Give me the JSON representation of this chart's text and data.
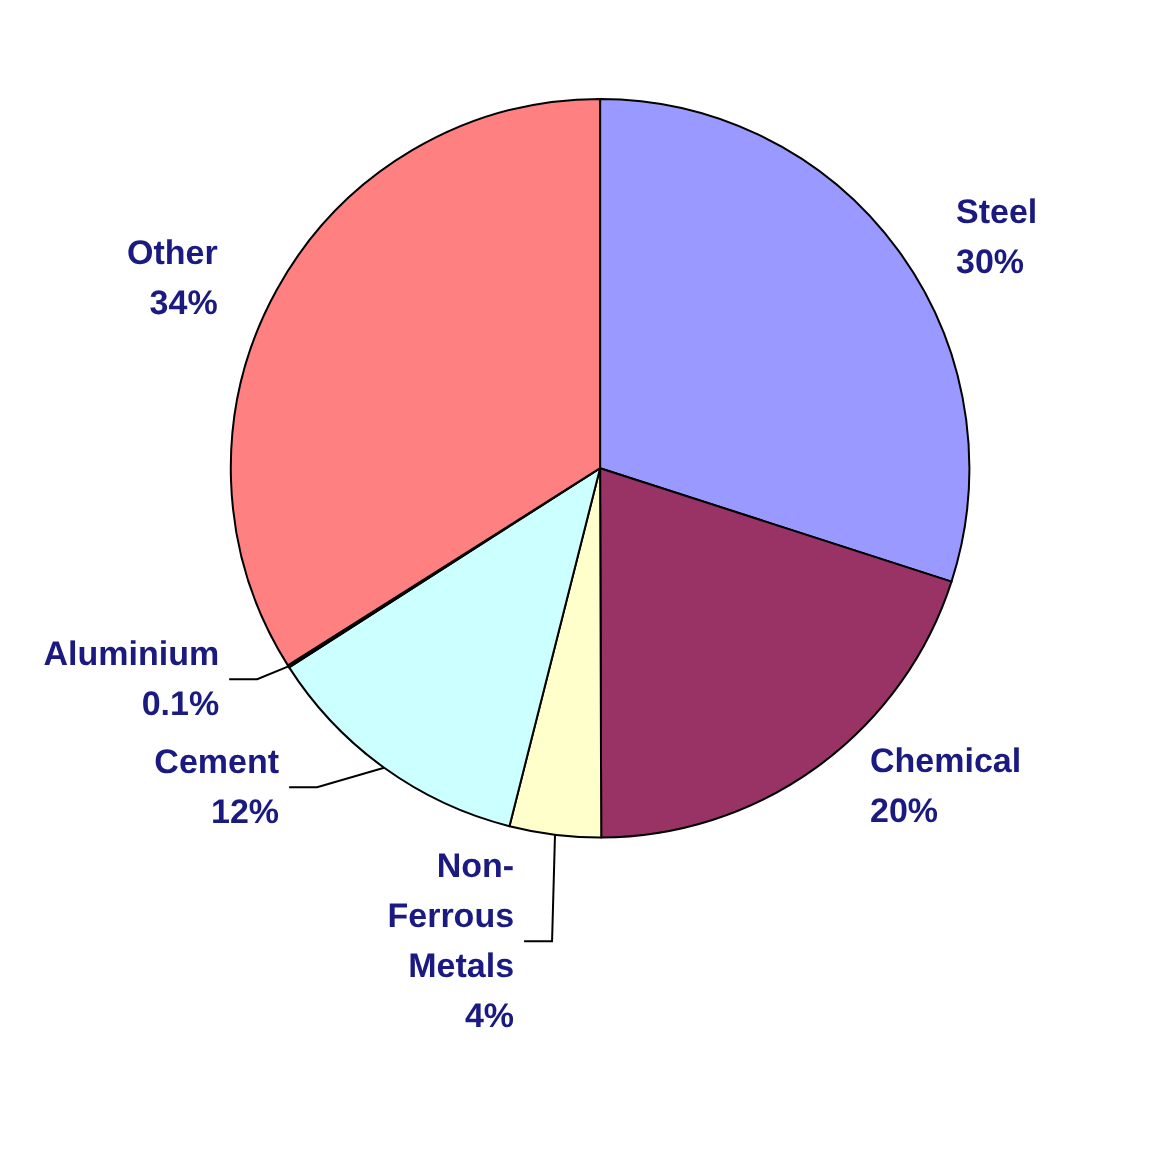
{
  "chart_data": {
    "type": "pie",
    "categories": [
      "Steel",
      "Chemical",
      "Non-Ferrous Metals",
      "Cement",
      "Aluminium",
      "Other"
    ],
    "values": [
      30,
      20,
      4,
      12,
      0.1,
      34
    ],
    "colors": [
      "#9999ff",
      "#993366",
      "#ffffcc",
      "#ccffff",
      "#660066",
      "#ff8080"
    ],
    "value_labels": [
      "30%",
      "20%",
      "4%",
      "12%",
      "0.1%",
      "34%"
    ]
  }
}
